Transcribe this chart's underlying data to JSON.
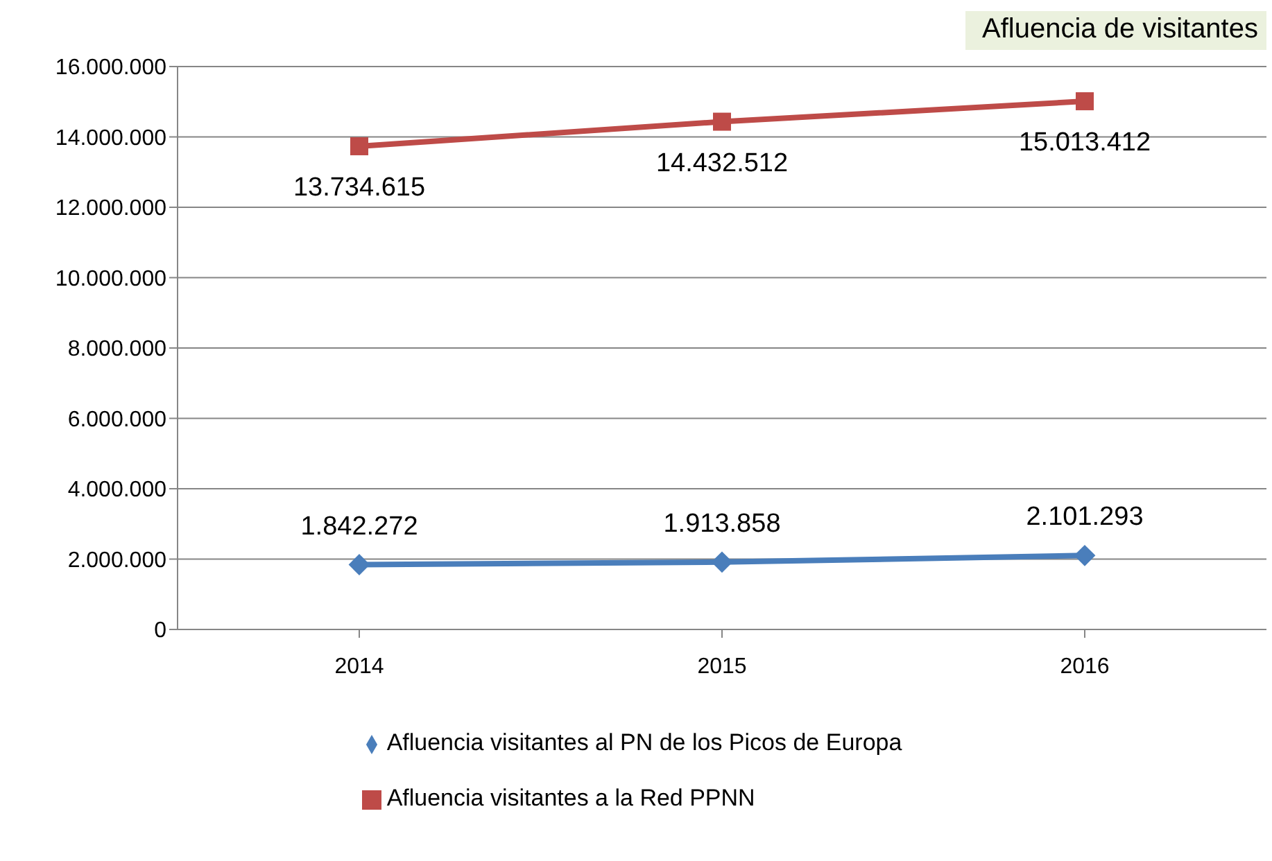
{
  "chart_data": {
    "type": "line",
    "title": "Afluencia de visitantes",
    "categories": [
      "2014",
      "2015",
      "2016"
    ],
    "series": [
      {
        "name": "Afluencia visitantes al PN de los Picos de Europa",
        "color": "#4a7ebb",
        "marker": "diamond",
        "values": [
          1842272,
          1913858,
          2101293
        ],
        "value_labels": [
          "1.842.272",
          "1.913.858",
          "2.101.293"
        ]
      },
      {
        "name": "Afluencia visitantes a la Red PPNN",
        "color": "#be4b48",
        "marker": "square",
        "values": [
          13734615,
          14432512,
          15013412
        ],
        "value_labels": [
          "13.734.615",
          "14.432.512",
          "15.013.412"
        ]
      }
    ],
    "ylim": [
      0,
      16000000
    ],
    "yticks": [
      0,
      {
        "value": 2000000,
        "label": "2.000.000"
      },
      {
        "value": 4000000,
        "label": "4.000.000"
      },
      {
        "value": 6000000,
        "label": "6.000.000"
      },
      {
        "value": 8000000,
        "label": "8.000.000"
      },
      {
        "value": 10000000,
        "label": "10.000.000"
      },
      {
        "value": 12000000,
        "label": "12.000.000"
      },
      {
        "value": 14000000,
        "label": "14.000.000"
      },
      {
        "value": 16000000,
        "label": "16.000.000"
      }
    ],
    "grid": "y",
    "legend": "bottom"
  }
}
